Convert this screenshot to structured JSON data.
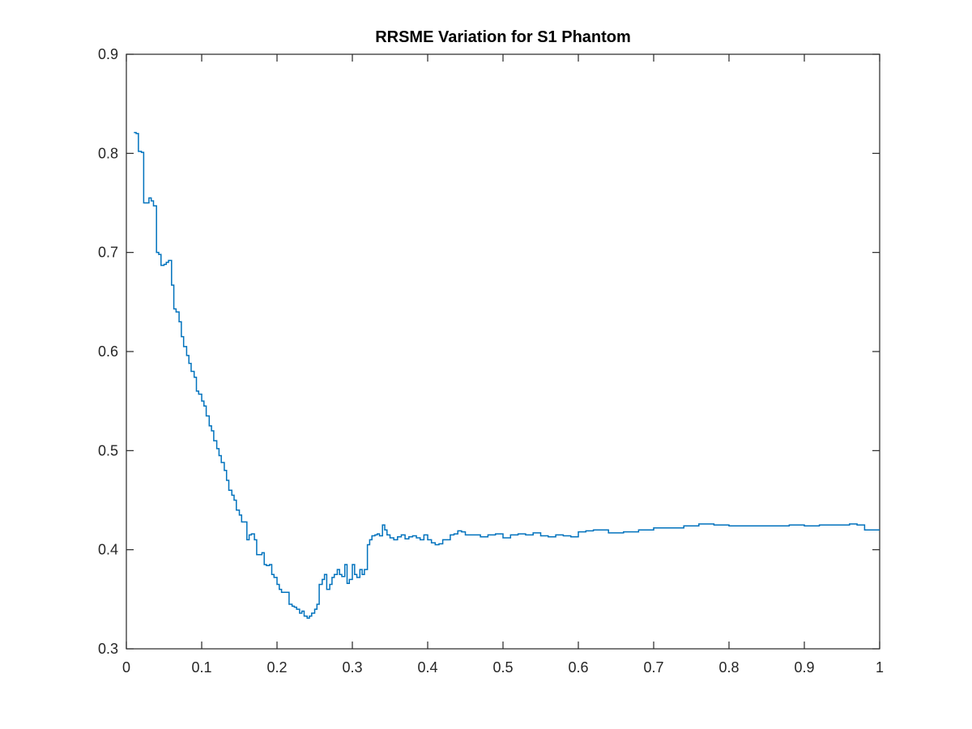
{
  "chart_data": {
    "type": "line",
    "title": "RRSME Variation for S1 Phantom",
    "xlabel": "",
    "ylabel": "",
    "xlim": [
      0,
      1
    ],
    "ylim": [
      0.3,
      0.9
    ],
    "x_ticks": [
      0,
      0.1,
      0.2,
      0.3,
      0.4,
      0.5,
      0.6,
      0.7,
      0.8,
      0.9,
      1
    ],
    "x_tick_labels": [
      "0",
      "0.1",
      "0.2",
      "0.3",
      "0.4",
      "0.5",
      "0.6",
      "0.7",
      "0.8",
      "0.9",
      "1"
    ],
    "y_ticks": [
      0.3,
      0.4,
      0.5,
      0.6,
      0.7,
      0.8,
      0.9
    ],
    "y_tick_labels": [
      "0.3",
      "0.4",
      "0.5",
      "0.6",
      "0.7",
      "0.8",
      "0.9"
    ],
    "grid": false,
    "series": [
      {
        "color": "#0072BD",
        "x": [
          0.01,
          0.013,
          0.016,
          0.02,
          0.023,
          0.026,
          0.03,
          0.033,
          0.036,
          0.04,
          0.043,
          0.046,
          0.05,
          0.053,
          0.056,
          0.06,
          0.063,
          0.066,
          0.07,
          0.073,
          0.076,
          0.08,
          0.083,
          0.086,
          0.09,
          0.093,
          0.096,
          0.1,
          0.103,
          0.106,
          0.11,
          0.113,
          0.116,
          0.12,
          0.123,
          0.126,
          0.13,
          0.133,
          0.136,
          0.14,
          0.143,
          0.146,
          0.15,
          0.153,
          0.156,
          0.16,
          0.163,
          0.166,
          0.17,
          0.173,
          0.176,
          0.18,
          0.183,
          0.186,
          0.19,
          0.193,
          0.196,
          0.2,
          0.203,
          0.206,
          0.21,
          0.213,
          0.216,
          0.22,
          0.223,
          0.226,
          0.23,
          0.233,
          0.236,
          0.24,
          0.243,
          0.246,
          0.25,
          0.253,
          0.256,
          0.26,
          0.263,
          0.266,
          0.27,
          0.273,
          0.276,
          0.28,
          0.283,
          0.286,
          0.29,
          0.293,
          0.296,
          0.3,
          0.303,
          0.306,
          0.31,
          0.313,
          0.316,
          0.32,
          0.323,
          0.326,
          0.33,
          0.333,
          0.336,
          0.34,
          0.343,
          0.346,
          0.35,
          0.355,
          0.36,
          0.365,
          0.37,
          0.375,
          0.38,
          0.385,
          0.39,
          0.395,
          0.4,
          0.405,
          0.41,
          0.415,
          0.42,
          0.425,
          0.43,
          0.435,
          0.44,
          0.445,
          0.45,
          0.46,
          0.47,
          0.48,
          0.49,
          0.5,
          0.51,
          0.52,
          0.53,
          0.54,
          0.55,
          0.56,
          0.57,
          0.58,
          0.59,
          0.6,
          0.61,
          0.62,
          0.64,
          0.66,
          0.68,
          0.7,
          0.72,
          0.74,
          0.76,
          0.78,
          0.8,
          0.82,
          0.84,
          0.86,
          0.88,
          0.9,
          0.92,
          0.94,
          0.96,
          0.97,
          0.98,
          0.99,
          1.0
        ],
        "y": [
          0.821,
          0.82,
          0.802,
          0.801,
          0.75,
          0.75,
          0.755,
          0.752,
          0.747,
          0.7,
          0.698,
          0.687,
          0.688,
          0.69,
          0.692,
          0.667,
          0.643,
          0.64,
          0.63,
          0.615,
          0.605,
          0.596,
          0.588,
          0.58,
          0.574,
          0.56,
          0.557,
          0.55,
          0.545,
          0.535,
          0.525,
          0.52,
          0.51,
          0.502,
          0.495,
          0.488,
          0.48,
          0.47,
          0.46,
          0.455,
          0.45,
          0.44,
          0.435,
          0.428,
          0.428,
          0.41,
          0.415,
          0.416,
          0.41,
          0.395,
          0.395,
          0.397,
          0.385,
          0.384,
          0.385,
          0.375,
          0.372,
          0.365,
          0.36,
          0.357,
          0.357,
          0.357,
          0.345,
          0.343,
          0.342,
          0.34,
          0.336,
          0.338,
          0.333,
          0.331,
          0.333,
          0.336,
          0.34,
          0.345,
          0.365,
          0.37,
          0.375,
          0.36,
          0.365,
          0.372,
          0.375,
          0.38,
          0.375,
          0.373,
          0.385,
          0.366,
          0.37,
          0.385,
          0.375,
          0.372,
          0.38,
          0.375,
          0.38,
          0.405,
          0.41,
          0.414,
          0.415,
          0.416,
          0.414,
          0.425,
          0.42,
          0.415,
          0.412,
          0.41,
          0.413,
          0.415,
          0.411,
          0.413,
          0.414,
          0.412,
          0.41,
          0.415,
          0.41,
          0.407,
          0.405,
          0.406,
          0.41,
          0.41,
          0.415,
          0.416,
          0.419,
          0.418,
          0.415,
          0.415,
          0.413,
          0.415,
          0.416,
          0.412,
          0.415,
          0.416,
          0.415,
          0.417,
          0.414,
          0.413,
          0.415,
          0.414,
          0.413,
          0.418,
          0.419,
          0.42,
          0.417,
          0.418,
          0.42,
          0.422,
          0.422,
          0.424,
          0.426,
          0.425,
          0.424,
          0.424,
          0.424,
          0.424,
          0.425,
          0.424,
          0.425,
          0.425,
          0.426,
          0.425,
          0.42,
          0.42,
          0.42
        ]
      }
    ]
  }
}
